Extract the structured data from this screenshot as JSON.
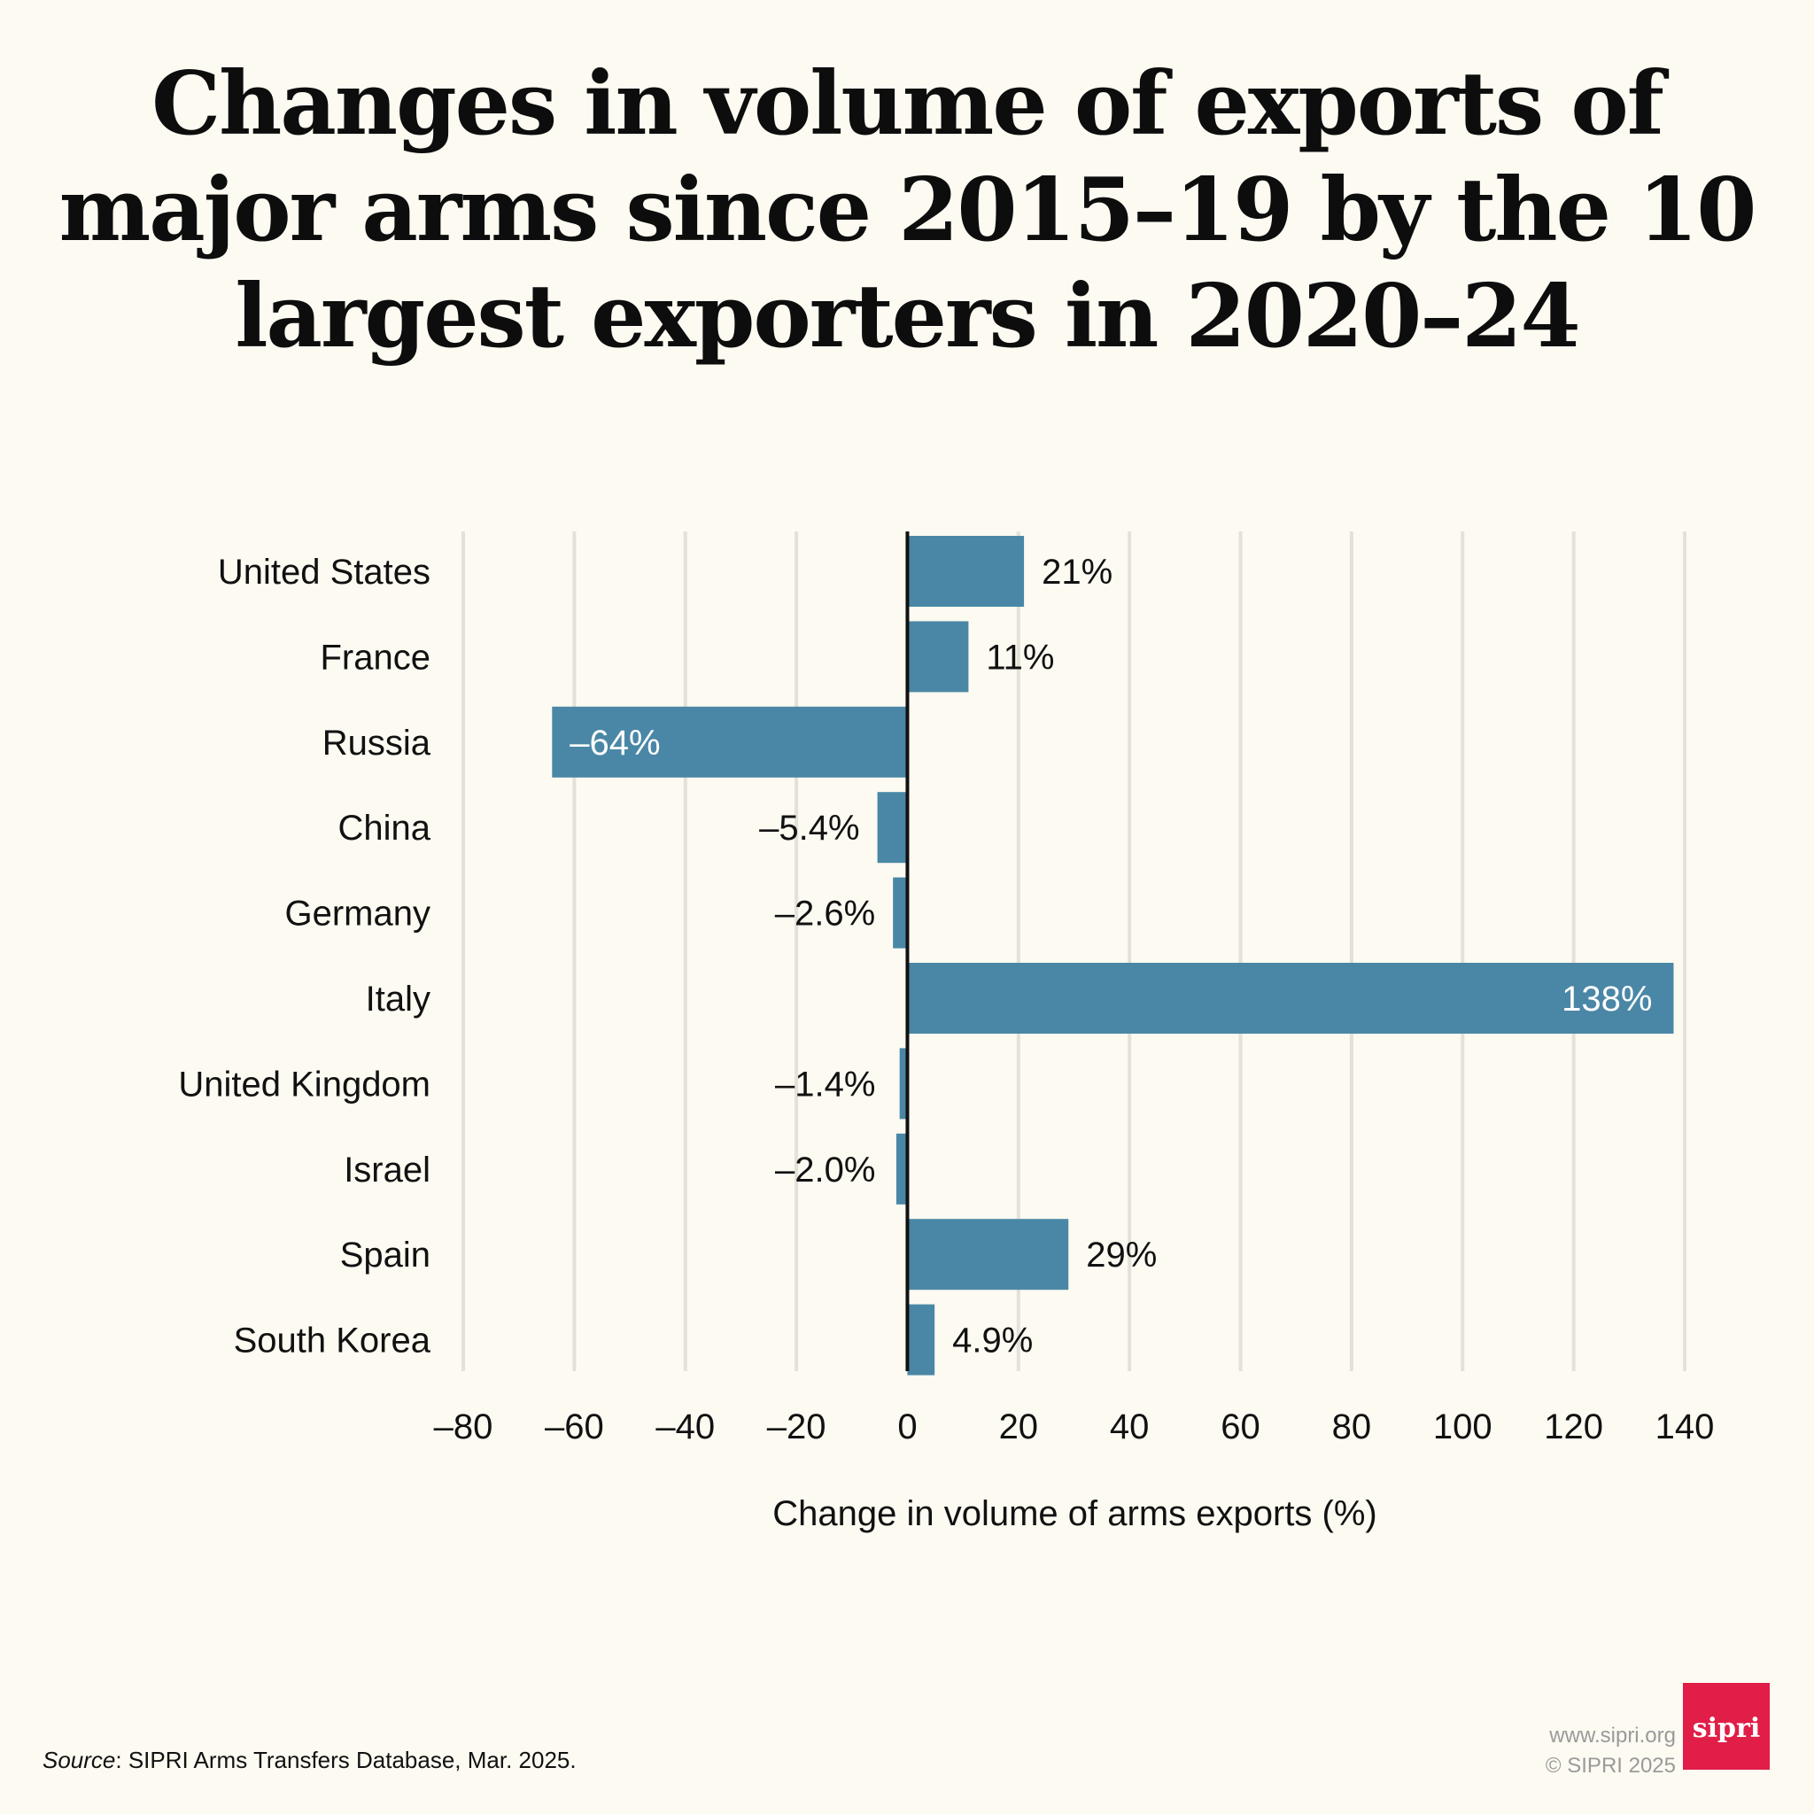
{
  "title": "Changes in volume of exports of major arms since 2015–19 by the  10 largest exporters in 2020–24",
  "chart_data": {
    "type": "bar",
    "orientation": "horizontal",
    "categories": [
      "United States",
      "France",
      "Russia",
      "China",
      "Germany",
      "Italy",
      "United Kingdom",
      "Israel",
      "Spain",
      "South Korea"
    ],
    "values": [
      21,
      11,
      -64,
      -5.4,
      -2.6,
      138,
      -1.4,
      -2.0,
      29,
      4.9
    ],
    "value_labels": [
      "21%",
      "11%",
      "–64%",
      "–5.4%",
      "–2.6%",
      "138%",
      "–1.4%",
      "–2.0%",
      "29%",
      "4.9%"
    ],
    "xlim": [
      -80,
      140
    ],
    "xticks": [
      -80,
      -60,
      -40,
      -20,
      0,
      20,
      40,
      60,
      80,
      100,
      120,
      140
    ],
    "xtick_labels": [
      "–80",
      "–60",
      "–40",
      "–20",
      "0",
      "20",
      "40",
      "60",
      "80",
      "100",
      "120",
      "140"
    ],
    "xlabel": "Change in volume of arms exports (%)",
    "ylabel": "",
    "grid": true,
    "bar_color": "#4a87a6"
  },
  "footer": {
    "source_prefix": "Source",
    "source_text": ": SIPRI Arms Transfers Database, Mar. 2025.",
    "url": "www.sipri.org",
    "copyright": "© SIPRI 2025",
    "logo_text": "sipri",
    "logo_color": "#e01e47"
  }
}
